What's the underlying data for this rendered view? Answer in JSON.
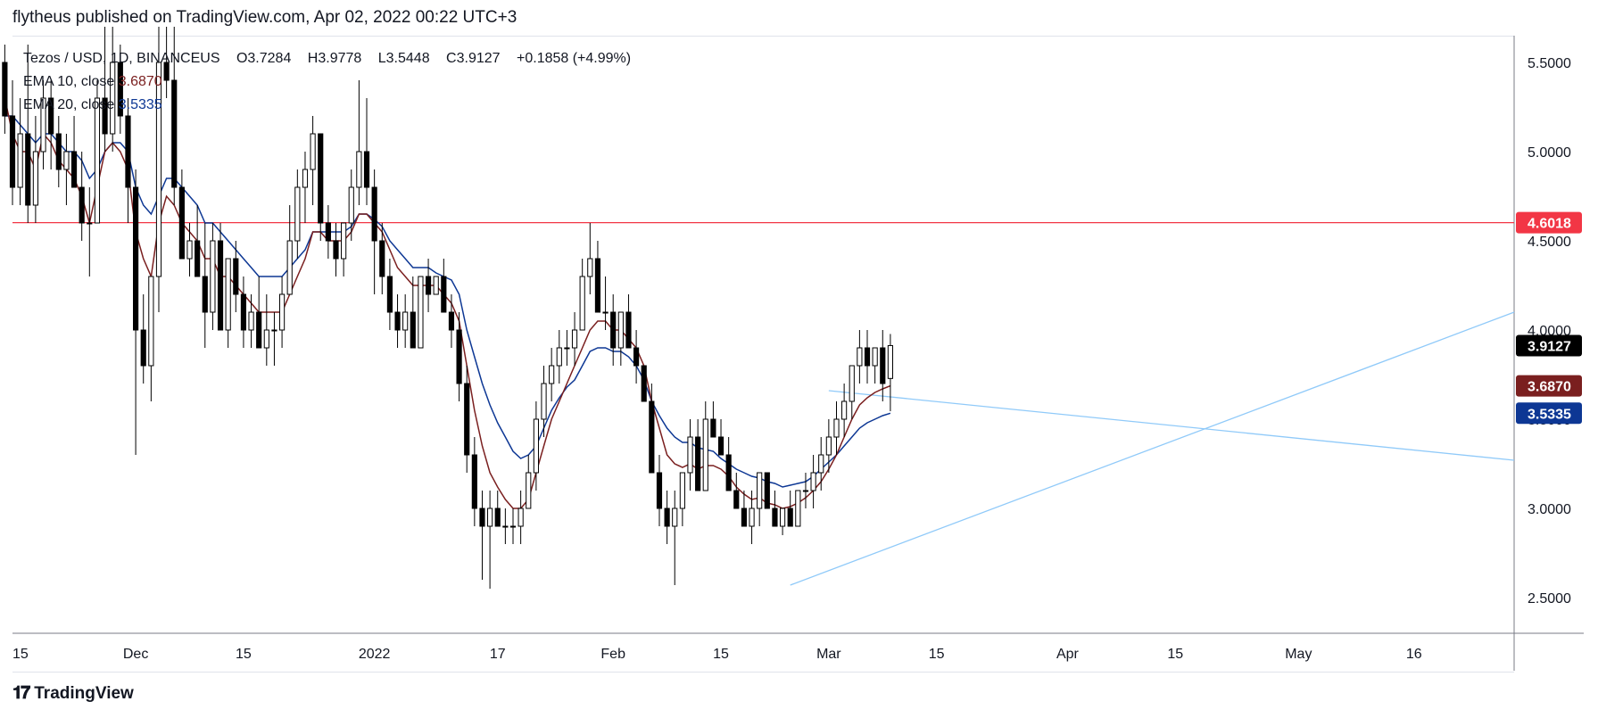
{
  "header": {
    "publisher": "flytheus published on TradingView.com, Apr 02, 2022 00:22 UTC+3"
  },
  "legend": {
    "symbol": "Tezos / USD, 1D, BINANCEUS",
    "open": "O3.7284",
    "high": "H3.9778",
    "low": "L3.5448",
    "close": "C3.9127",
    "change": "+0.1858 (+4.99%)",
    "ema10_label": "EMA 10, close",
    "ema10_value": "3.6870",
    "ema20_label": "EMA 20, close",
    "ema20_value": "3.5335"
  },
  "footer": {
    "logo_text": "TradingView"
  },
  "colors": {
    "up_body": "#ffffff",
    "down_body": "#000000",
    "ema10": "#7a1f1f",
    "ema20": "#0d3794",
    "resistance": "#f23645",
    "trendline": "#90caf9",
    "last_price_tag": "#000000"
  },
  "chart_data": {
    "type": "candlestick",
    "x_range": [
      "2021-11-15",
      "2022-05-29"
    ],
    "y_range": [
      2.3,
      5.65
    ],
    "y_ticks": [
      "2.5000",
      "3.0000",
      "3.5000",
      "4.0000",
      "4.5000",
      "5.0000",
      "5.5000"
    ],
    "x_ticks": [
      {
        "date": "2021-11-15",
        "label": "15"
      },
      {
        "date": "2021-12-01",
        "label": "Dec"
      },
      {
        "date": "2021-12-15",
        "label": "15"
      },
      {
        "date": "2022-01-01",
        "label": "2022"
      },
      {
        "date": "2022-01-17",
        "label": "17"
      },
      {
        "date": "2022-02-01",
        "label": "Feb"
      },
      {
        "date": "2022-02-15",
        "label": "15"
      },
      {
        "date": "2022-03-01",
        "label": "Mar"
      },
      {
        "date": "2022-03-15",
        "label": "15"
      },
      {
        "date": "2022-04-01",
        "label": "Apr"
      },
      {
        "date": "2022-04-15",
        "label": "15"
      },
      {
        "date": "2022-05-01",
        "label": "May"
      },
      {
        "date": "2022-05-16",
        "label": "16"
      }
    ],
    "price_labels": [
      {
        "value": 4.6018,
        "text": "4.6018",
        "color": "#f23645"
      },
      {
        "value": 3.9127,
        "text": "3.9127",
        "color": "#000000"
      },
      {
        "value": 3.687,
        "text": "3.6870",
        "color": "#7a1f1f"
      },
      {
        "value": 3.5335,
        "text": "3.5335",
        "color": "#0d3794"
      }
    ],
    "horizontal_lines": [
      {
        "value": 4.6018,
        "color": "#f23645"
      }
    ],
    "trendlines": [
      {
        "from": [
          "2022-03-01",
          3.66
        ],
        "to": [
          "2022-05-29",
          3.27
        ]
      },
      {
        "from": [
          "2022-02-24",
          2.57
        ],
        "to": [
          "2022-05-29",
          4.1
        ]
      }
    ],
    "candles_ohlc": [
      [
        5.5,
        5.6,
        5.1,
        5.2
      ],
      [
        5.2,
        5.4,
        4.7,
        4.8
      ],
      [
        4.8,
        5.3,
        4.7,
        5.1
      ],
      [
        5.1,
        5.6,
        4.6,
        4.7
      ],
      [
        4.7,
        5.2,
        4.6,
        5.0
      ],
      [
        5.0,
        5.4,
        4.9,
        5.3
      ],
      [
        5.3,
        5.4,
        4.9,
        5.1
      ],
      [
        5.1,
        5.2,
        4.8,
        4.9
      ],
      [
        4.9,
        5.1,
        4.7,
        5.0
      ],
      [
        5.0,
        5.2,
        4.8,
        4.8
      ],
      [
        4.8,
        5.0,
        4.5,
        4.6
      ],
      [
        4.6,
        4.8,
        4.3,
        4.6
      ],
      [
        4.6,
        5.4,
        4.6,
        5.3
      ],
      [
        5.3,
        5.7,
        5.0,
        5.1
      ],
      [
        5.1,
        5.7,
        5.0,
        5.5
      ],
      [
        5.5,
        5.6,
        5.1,
        5.2
      ],
      [
        5.2,
        5.3,
        4.6,
        4.8
      ],
      [
        4.8,
        4.9,
        3.3,
        4.0
      ],
      [
        4.0,
        4.2,
        3.7,
        3.8
      ],
      [
        3.8,
        4.1,
        3.6,
        4.3
      ],
      [
        4.3,
        5.7,
        4.1,
        5.5
      ],
      [
        5.5,
        5.7,
        5.3,
        5.4
      ],
      [
        5.4,
        5.7,
        4.7,
        4.8
      ],
      [
        4.8,
        4.9,
        4.5,
        4.4
      ],
      [
        4.4,
        4.6,
        4.3,
        4.5
      ],
      [
        4.5,
        4.7,
        4.3,
        4.3
      ],
      [
        4.3,
        4.6,
        3.9,
        4.1
      ],
      [
        4.1,
        4.6,
        4.0,
        4.5
      ],
      [
        4.5,
        4.6,
        4.0,
        4.0
      ],
      [
        4.0,
        4.4,
        3.9,
        4.4
      ],
      [
        4.4,
        4.5,
        4.1,
        4.2
      ],
      [
        4.2,
        4.3,
        3.9,
        4.0
      ],
      [
        4.0,
        4.2,
        3.9,
        4.1
      ],
      [
        4.1,
        4.3,
        3.9,
        3.9
      ],
      [
        3.9,
        4.2,
        3.8,
        4.0
      ],
      [
        4.0,
        4.1,
        3.8,
        4.0
      ],
      [
        4.0,
        4.3,
        3.9,
        4.2
      ],
      [
        4.2,
        4.7,
        4.2,
        4.5
      ],
      [
        4.5,
        4.9,
        4.4,
        4.8
      ],
      [
        4.8,
        5.0,
        4.6,
        4.9
      ],
      [
        4.9,
        5.2,
        4.7,
        5.1
      ],
      [
        5.1,
        5.1,
        4.5,
        4.6
      ],
      [
        4.6,
        4.7,
        4.4,
        4.5
      ],
      [
        4.5,
        4.6,
        4.3,
        4.4
      ],
      [
        4.4,
        4.6,
        4.3,
        4.6
      ],
      [
        4.6,
        4.9,
        4.5,
        4.8
      ],
      [
        4.8,
        5.4,
        4.7,
        5.0
      ],
      [
        5.0,
        5.3,
        4.7,
        4.8
      ],
      [
        4.8,
        4.9,
        4.2,
        4.5
      ],
      [
        4.5,
        4.6,
        4.2,
        4.3
      ],
      [
        4.3,
        4.4,
        4.0,
        4.1
      ],
      [
        4.1,
        4.2,
        3.9,
        4.0
      ],
      [
        4.0,
        4.2,
        3.9,
        4.1
      ],
      [
        4.1,
        4.3,
        3.9,
        3.9
      ],
      [
        3.9,
        4.3,
        3.9,
        4.3
      ],
      [
        4.3,
        4.4,
        4.1,
        4.2
      ],
      [
        4.2,
        4.3,
        4.2,
        4.3
      ],
      [
        4.3,
        4.4,
        4.2,
        4.1
      ],
      [
        4.1,
        4.2,
        3.9,
        4.0
      ],
      [
        4.0,
        4.1,
        3.6,
        3.7
      ],
      [
        3.7,
        3.8,
        3.2,
        3.3
      ],
      [
        3.3,
        3.4,
        2.9,
        3.0
      ],
      [
        3.0,
        3.1,
        2.6,
        2.9
      ],
      [
        2.9,
        3.1,
        2.55,
        3.0
      ],
      [
        3.0,
        3.1,
        2.9,
        2.9
      ],
      [
        2.9,
        3.0,
        2.8,
        2.9
      ],
      [
        2.9,
        3.0,
        2.8,
        2.9
      ],
      [
        2.9,
        3.1,
        2.8,
        3.0
      ],
      [
        3.0,
        3.3,
        3.0,
        3.2
      ],
      [
        3.2,
        3.6,
        3.1,
        3.5
      ],
      [
        3.5,
        3.8,
        3.4,
        3.7
      ],
      [
        3.7,
        3.9,
        3.6,
        3.8
      ],
      [
        3.8,
        4.0,
        3.7,
        3.9
      ],
      [
        3.9,
        4.0,
        3.8,
        3.9
      ],
      [
        3.9,
        4.1,
        3.8,
        4.0
      ],
      [
        4.0,
        4.4,
        4.0,
        4.3
      ],
      [
        4.3,
        4.6,
        4.2,
        4.4
      ],
      [
        4.4,
        4.5,
        4.1,
        4.1
      ],
      [
        4.1,
        4.3,
        4.0,
        4.1
      ],
      [
        4.1,
        4.2,
        3.8,
        3.9
      ],
      [
        3.9,
        4.1,
        3.8,
        4.1
      ],
      [
        4.1,
        4.2,
        3.9,
        3.9
      ],
      [
        3.9,
        4.0,
        3.7,
        3.8
      ],
      [
        3.8,
        3.8,
        3.6,
        3.6
      ],
      [
        3.6,
        3.7,
        3.4,
        3.2
      ],
      [
        3.2,
        3.3,
        2.9,
        3.0
      ],
      [
        3.0,
        3.1,
        2.8,
        2.9
      ],
      [
        2.9,
        3.1,
        2.57,
        3.0
      ],
      [
        3.0,
        3.2,
        2.9,
        3.2
      ],
      [
        3.2,
        3.5,
        3.1,
        3.4
      ],
      [
        3.4,
        3.5,
        3.1,
        3.1
      ],
      [
        3.1,
        3.6,
        3.1,
        3.5
      ],
      [
        3.5,
        3.6,
        3.4,
        3.4
      ],
      [
        3.4,
        3.5,
        3.3,
        3.3
      ],
      [
        3.3,
        3.4,
        3.1,
        3.1
      ],
      [
        3.1,
        3.2,
        3.0,
        3.0
      ],
      [
        3.0,
        3.1,
        2.9,
        2.9
      ],
      [
        2.9,
        3.1,
        2.8,
        3.0
      ],
      [
        3.0,
        3.2,
        2.9,
        3.2
      ],
      [
        3.2,
        3.2,
        3.0,
        3.0
      ],
      [
        3.0,
        3.1,
        2.9,
        2.9
      ],
      [
        2.9,
        3.0,
        2.85,
        3.0
      ],
      [
        3.0,
        3.1,
        2.9,
        2.9
      ],
      [
        2.9,
        3.1,
        2.9,
        3.1
      ],
      [
        3.1,
        3.2,
        3.0,
        3.1
      ],
      [
        3.1,
        3.3,
        3.0,
        3.2
      ],
      [
        3.2,
        3.4,
        3.1,
        3.3
      ],
      [
        3.3,
        3.5,
        3.2,
        3.4
      ],
      [
        3.4,
        3.6,
        3.3,
        3.5
      ],
      [
        3.5,
        3.7,
        3.4,
        3.6
      ],
      [
        3.6,
        3.8,
        3.5,
        3.8
      ],
      [
        3.8,
        4.0,
        3.7,
        3.9
      ],
      [
        3.9,
        4.0,
        3.7,
        3.8
      ],
      [
        3.8,
        3.9,
        3.7,
        3.9
      ],
      [
        3.9,
        4.0,
        3.6,
        3.7
      ],
      [
        3.7284,
        3.9778,
        3.5448,
        3.9127
      ]
    ],
    "ema10": [
      5.3,
      5.1,
      5.0,
      5.0,
      4.9,
      5.1,
      5.05,
      4.95,
      4.9,
      4.85,
      4.75,
      4.6,
      4.8,
      5.0,
      5.05,
      5.0,
      4.9,
      4.55,
      4.4,
      4.3,
      4.6,
      4.75,
      4.7,
      4.6,
      4.55,
      4.5,
      4.4,
      4.4,
      4.3,
      4.3,
      4.25,
      4.2,
      4.15,
      4.1,
      4.1,
      4.1,
      4.1,
      4.2,
      4.3,
      4.4,
      4.55,
      4.55,
      4.5,
      4.5,
      4.5,
      4.55,
      4.65,
      4.65,
      4.6,
      4.55,
      4.45,
      4.35,
      4.3,
      4.25,
      4.25,
      4.25,
      4.25,
      4.2,
      4.15,
      4.05,
      3.8,
      3.55,
      3.35,
      3.2,
      3.12,
      3.05,
      3.0,
      3.0,
      3.05,
      3.2,
      3.35,
      3.5,
      3.6,
      3.7,
      3.8,
      3.9,
      4.0,
      4.05,
      4.05,
      4.0,
      4.0,
      3.95,
      3.9,
      3.8,
      3.6,
      3.45,
      3.3,
      3.25,
      3.23,
      3.25,
      3.22,
      3.24,
      3.24,
      3.22,
      3.18,
      3.12,
      3.08,
      3.05,
      3.06,
      3.03,
      3.02,
      3.0,
      3.01,
      3.03,
      3.06,
      3.1,
      3.15,
      3.22,
      3.3,
      3.4,
      3.5,
      3.58,
      3.62,
      3.65,
      3.67,
      3.687
    ],
    "ema20": [
      5.2,
      5.2,
      5.15,
      5.1,
      5.05,
      5.1,
      5.1,
      5.05,
      5.0,
      5.0,
      4.95,
      4.85,
      4.9,
      5.0,
      5.05,
      5.05,
      5.0,
      4.8,
      4.7,
      4.65,
      4.75,
      4.85,
      4.85,
      4.8,
      4.75,
      4.7,
      4.6,
      4.6,
      4.55,
      4.5,
      4.45,
      4.4,
      4.35,
      4.3,
      4.3,
      4.3,
      4.3,
      4.35,
      4.4,
      4.45,
      4.55,
      4.55,
      4.55,
      4.55,
      4.55,
      4.58,
      4.65,
      4.65,
      4.62,
      4.58,
      4.5,
      4.45,
      4.4,
      4.35,
      4.35,
      4.35,
      4.32,
      4.3,
      4.28,
      4.2,
      4.0,
      3.85,
      3.7,
      3.58,
      3.48,
      3.4,
      3.32,
      3.28,
      3.3,
      3.35,
      3.45,
      3.55,
      3.62,
      3.68,
      3.72,
      3.8,
      3.88,
      3.9,
      3.9,
      3.88,
      3.88,
      3.85,
      3.8,
      3.72,
      3.6,
      3.52,
      3.45,
      3.4,
      3.37,
      3.37,
      3.34,
      3.33,
      3.32,
      3.28,
      3.25,
      3.22,
      3.2,
      3.18,
      3.17,
      3.15,
      3.14,
      3.12,
      3.13,
      3.14,
      3.15,
      3.18,
      3.22,
      3.26,
      3.3,
      3.35,
      3.4,
      3.45,
      3.48,
      3.5,
      3.52,
      3.5335
    ]
  }
}
